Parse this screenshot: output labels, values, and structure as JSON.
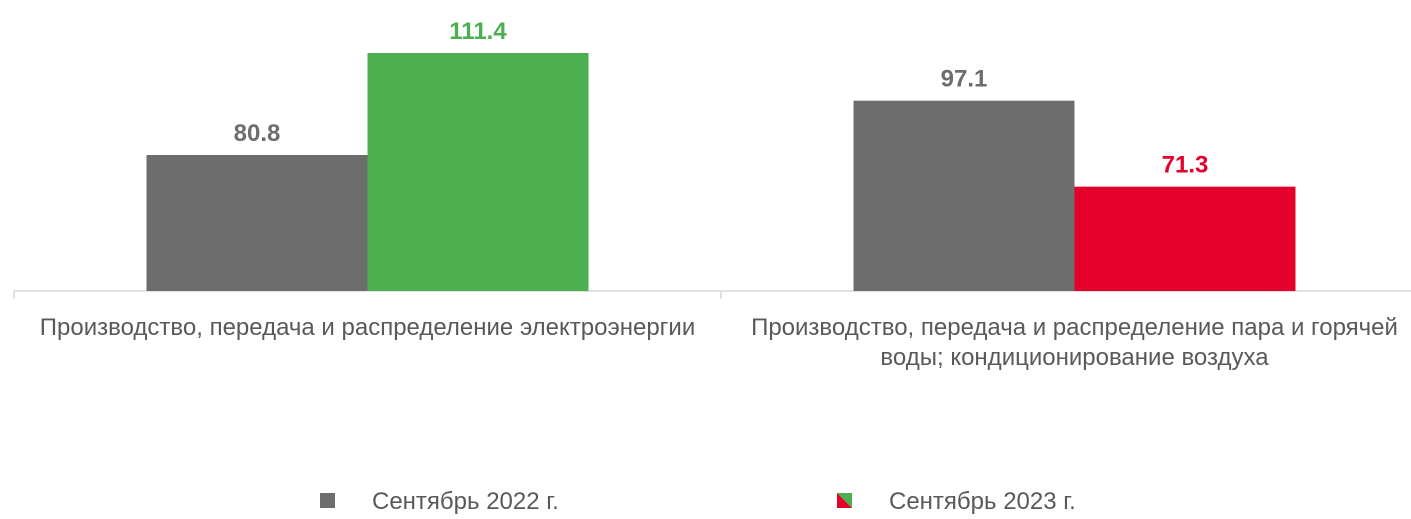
{
  "chart_data": {
    "type": "bar",
    "categories": [
      "Производство, передача и распределение электроэнергии",
      "Производство, передача и распределение пара и горячей воды; кондиционирование воздуха"
    ],
    "series": [
      {
        "name": "Сентябрь 2022 г.",
        "color": "#6d6d6d",
        "values": [
          80.8,
          97.1
        ]
      },
      {
        "name": "Сентябрь 2023 г.",
        "colors": [
          "#4caf50",
          "#e4002b"
        ],
        "values": [
          111.4,
          71.3
        ]
      }
    ],
    "ylim": [
      40,
      112
    ]
  }
}
